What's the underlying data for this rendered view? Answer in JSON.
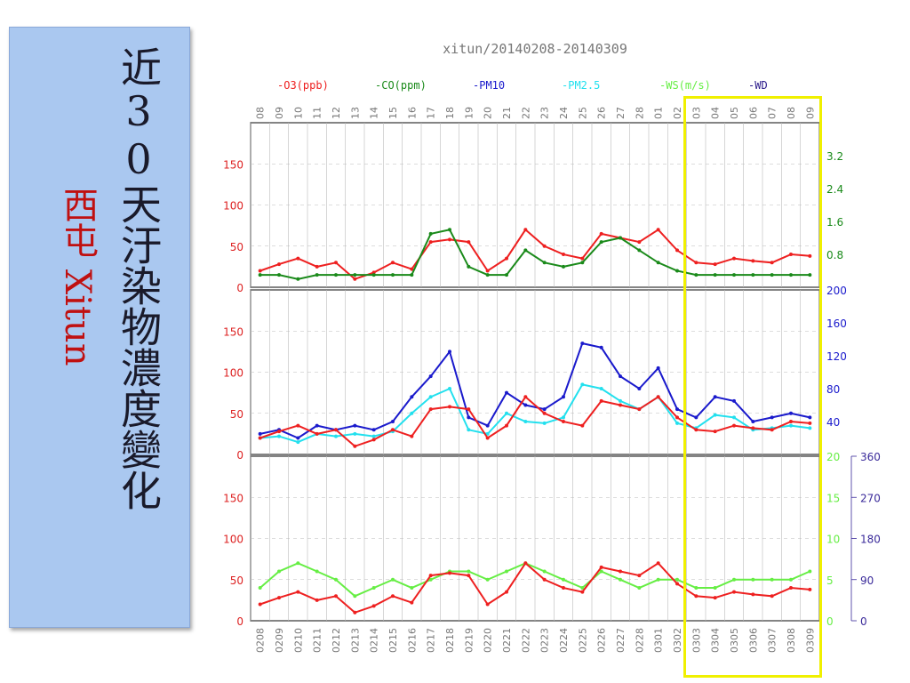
{
  "panel": {
    "title": "近30天汙染物濃度變化",
    "station": "西屯 Xitun"
  },
  "chart_data": {
    "type": "line",
    "title": "xitun/20140208-20140309",
    "legend": [
      {
        "name": "-O3(ppb)",
        "color": "#ee2020"
      },
      {
        "name": "-CO(ppm)",
        "color": "#1a8a1a"
      },
      {
        "name": "-PM10",
        "color": "#1a1acc"
      },
      {
        "name": "-PM2.5",
        "color": "#22e0ee"
      },
      {
        "name": "-WS(m/s)",
        "color": "#66ee44"
      },
      {
        "name": "-WD",
        "color": "#2a1a8a"
      }
    ],
    "top_tick_labels": [
      "08",
      "09",
      "10",
      "11",
      "12",
      "13",
      "14",
      "15",
      "16",
      "17",
      "18",
      "19",
      "20",
      "21",
      "22",
      "23",
      "24",
      "25",
      "26",
      "27",
      "28",
      "01",
      "02",
      "03",
      "04",
      "05",
      "06",
      "07",
      "08",
      "09"
    ],
    "bottom_tick_labels": [
      "0208",
      "0209",
      "0210",
      "0211",
      "0212",
      "0213",
      "0214",
      "0215",
      "0216",
      "0217",
      "0218",
      "0219",
      "0220",
      "0221",
      "0222",
      "0223",
      "0224",
      "0225",
      "0226",
      "0227",
      "0228",
      "0301",
      "0302",
      "0303",
      "0304",
      "0305",
      "0306",
      "0307",
      "0308",
      "0309"
    ],
    "left_ticks": [
      "0",
      "50",
      "100",
      "150"
    ],
    "panels": [
      {
        "name": "O3/CO",
        "ylim": [
          0,
          200
        ],
        "right_axis": {
          "color": "#1a8a1a",
          "ticks": [
            "0.8",
            "1.6",
            "2.4",
            "3.2"
          ],
          "range": [
            0,
            4
          ]
        },
        "series": [
          {
            "name": "O3",
            "color": "#ee2020",
            "values": [
              20,
              28,
              35,
              25,
              30,
              10,
              18,
              30,
              22,
              55,
              58,
              55,
              20,
              35,
              70,
              50,
              40,
              35,
              65,
              60,
              55,
              70,
              45,
              30,
              28,
              35,
              32,
              30,
              40,
              38
            ]
          },
          {
            "name": "CO",
            "color": "#1a8a1a",
            "values": [
              0.3,
              0.3,
              0.2,
              0.3,
              0.3,
              0.3,
              0.3,
              0.3,
              0.3,
              1.3,
              1.4,
              0.5,
              0.3,
              0.3,
              0.9,
              0.6,
              0.5,
              0.6,
              1.1,
              1.2,
              0.9,
              0.6,
              0.4,
              0.3,
              0.3,
              0.3,
              0.3,
              0.3,
              0.3,
              0.3
            ]
          }
        ]
      },
      {
        "name": "PM",
        "ylim": [
          0,
          200
        ],
        "right_axis": {
          "color": "#1a1acc",
          "ticks": [
            "40",
            "80",
            "120",
            "160",
            "200"
          ],
          "range": [
            0,
            200
          ]
        },
        "series": [
          {
            "name": "PM10",
            "color": "#1a1acc",
            "values": [
              25,
              30,
              20,
              35,
              30,
              35,
              30,
              40,
              70,
              95,
              125,
              45,
              35,
              75,
              60,
              55,
              70,
              135,
              130,
              95,
              80,
              105,
              55,
              45,
              70,
              65,
              40,
              45,
              50,
              45
            ]
          },
          {
            "name": "PM2.5",
            "color": "#22e0ee",
            "values": [
              20,
              22,
              15,
              25,
              22,
              25,
              22,
              28,
              50,
              70,
              80,
              30,
              25,
              50,
              40,
              38,
              45,
              85,
              80,
              65,
              55,
              70,
              38,
              32,
              48,
              45,
              30,
              32,
              35,
              32
            ]
          },
          {
            "name": "O3",
            "color": "#ee2020",
            "values": [
              20,
              28,
              35,
              25,
              30,
              10,
              18,
              30,
              22,
              55,
              58,
              55,
              20,
              35,
              70,
              50,
              40,
              35,
              65,
              60,
              55,
              70,
              45,
              30,
              28,
              35,
              32,
              30,
              40,
              38
            ]
          }
        ]
      },
      {
        "name": "Wind",
        "ylim": [
          0,
          200
        ],
        "right_axis": {
          "color": "#66ee44",
          "ticks": [
            "0",
            "5",
            "10",
            "15",
            "20"
          ],
          "range": [
            0,
            20
          ]
        },
        "right_axis2": {
          "color": "#3a2a9a",
          "ticks": [
            "0",
            "90",
            "180",
            "270",
            "360"
          ],
          "range": [
            0,
            360
          ]
        },
        "series": [
          {
            "name": "WS",
            "color": "#66ee44",
            "values": [
              4,
              6,
              7,
              6,
              5,
              3,
              4,
              5,
              4,
              5,
              6,
              6,
              5,
              6,
              7,
              6,
              5,
              4,
              6,
              5,
              4,
              5,
              5,
              4,
              4,
              5,
              5,
              5,
              5,
              6
            ]
          },
          {
            "name": "O3",
            "color": "#ee2020",
            "values": [
              20,
              28,
              35,
              25,
              30,
              10,
              18,
              30,
              22,
              55,
              58,
              55,
              20,
              35,
              70,
              50,
              40,
              35,
              65,
              60,
              55,
              70,
              45,
              30,
              28,
              35,
              32,
              30,
              40,
              38
            ]
          }
        ]
      }
    ]
  }
}
